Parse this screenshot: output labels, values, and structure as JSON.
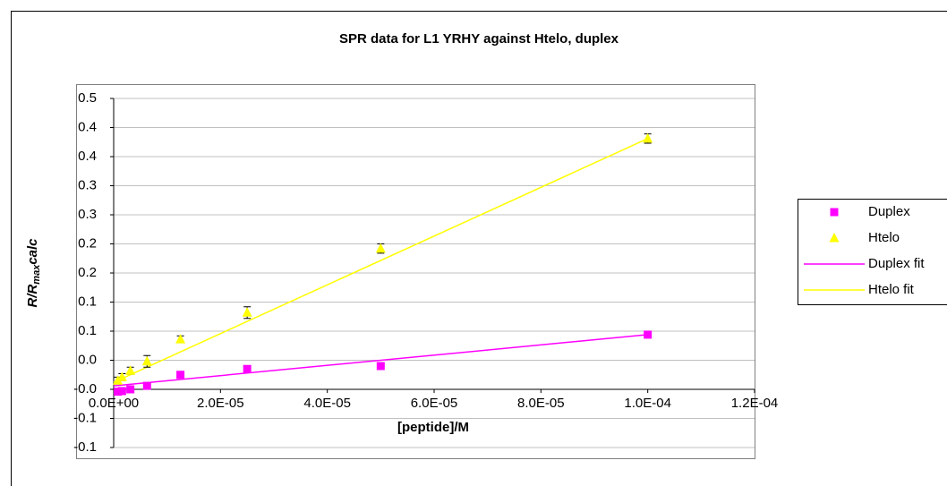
{
  "chart_data": {
    "type": "scatter",
    "title": "SPR data for L1 YRHY against Htelo, duplex",
    "x_label": "[peptide]/M",
    "y_label_parts": [
      "R/R",
      "max",
      "calc"
    ],
    "xlim": [
      0,
      0.00012
    ],
    "ylim": [
      -0.1,
      0.5
    ],
    "xticks": [
      {
        "value": 0,
        "label": "0.0E+00"
      },
      {
        "value": 2e-05,
        "label": "2.0E-05"
      },
      {
        "value": 4e-05,
        "label": "4.0E-05"
      },
      {
        "value": 6e-05,
        "label": "6.0E-05"
      },
      {
        "value": 8e-05,
        "label": "8.0E-05"
      },
      {
        "value": 0.0001,
        "label": "1.0E-04"
      },
      {
        "value": 0.00012,
        "label": "1.2E-04"
      }
    ],
    "yticks": [
      {
        "value": 0.5,
        "label": "0.5"
      },
      {
        "value": 0.45,
        "label": "0.4"
      },
      {
        "value": 0.4,
        "label": "0.4"
      },
      {
        "value": 0.35,
        "label": "0.3"
      },
      {
        "value": 0.3,
        "label": "0.3"
      },
      {
        "value": 0.25,
        "label": "0.2"
      },
      {
        "value": 0.2,
        "label": "0.2"
      },
      {
        "value": 0.15,
        "label": "0.1"
      },
      {
        "value": 0.1,
        "label": "0.1"
      },
      {
        "value": 0.05,
        "label": "0.0"
      },
      {
        "value": 0,
        "label": "-0.0"
      },
      {
        "value": -0.05,
        "label": "-0.1"
      },
      {
        "value": -0.1,
        "label": "-0.1"
      }
    ],
    "grid": true,
    "legend": "right",
    "series": [
      {
        "name": "Duplex",
        "color": "#ff00ff",
        "marker": "square",
        "x": [
          7.8e-07,
          1.5625e-06,
          3.125e-06,
          6.25e-06,
          1.25e-05,
          2.5e-05,
          5e-05,
          0.0001
        ],
        "values": [
          -0.004,
          -0.003,
          0.0,
          0.006,
          0.025,
          0.035,
          0.04,
          0.094
        ],
        "errors": [
          0.004,
          0.004,
          0.004,
          0.004,
          0.004,
          0.004,
          0.004,
          0.004
        ]
      },
      {
        "name": "Htelo",
        "color": "#ffff00",
        "marker": "triangle",
        "x": [
          7.8e-07,
          1.5625e-06,
          3.125e-06,
          6.25e-06,
          1.25e-05,
          2.5e-05,
          5e-05,
          0.0001
        ],
        "values": [
          0.015,
          0.021,
          0.032,
          0.048,
          0.086,
          0.132,
          0.242,
          0.431
        ],
        "errors": [
          0.006,
          0.006,
          0.006,
          0.01,
          0.006,
          0.01,
          0.008,
          0.008
        ]
      },
      {
        "name": "Duplex fit",
        "color": "#ff00ff",
        "marker": "line",
        "x": [
          0,
          0.0001
        ],
        "values": [
          0.006,
          0.094
        ]
      },
      {
        "name": "Htelo fit",
        "color": "#ffff00",
        "marker": "line",
        "x": [
          0,
          0.0001
        ],
        "values": [
          0.012,
          0.431
        ]
      }
    ]
  }
}
